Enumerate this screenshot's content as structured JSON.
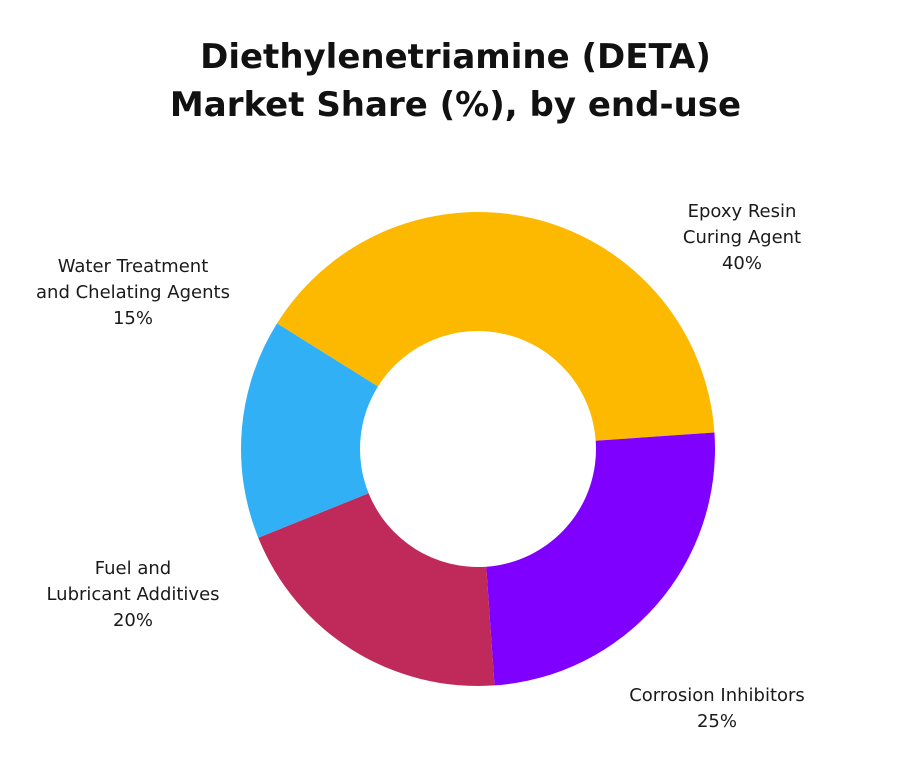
{
  "chart_data": {
    "type": "pie",
    "variant": "donut",
    "title": [
      "Diethylenetriamine (DETA)",
      "Market Share (%), by end-use"
    ],
    "legend": "none",
    "slices": [
      {
        "label_lines": [
          "Epoxy Resin",
          "Curing Agent"
        ],
        "percent_label": "40%",
        "value": 40,
        "color": "#FDB900"
      },
      {
        "label_lines": [
          "Corrosion Inhibitors"
        ],
        "percent_label": "25%",
        "value": 25,
        "color": "#8000FF"
      },
      {
        "label_lines": [
          "Fuel and",
          "Lubricant Additives"
        ],
        "percent_label": "20%",
        "value": 20,
        "color": "#C02A5A"
      },
      {
        "label_lines": [
          "Water Treatment",
          "and Chelating Agents"
        ],
        "percent_label": "15%",
        "value": 15,
        "color": "#31B0F6"
      }
    ]
  }
}
